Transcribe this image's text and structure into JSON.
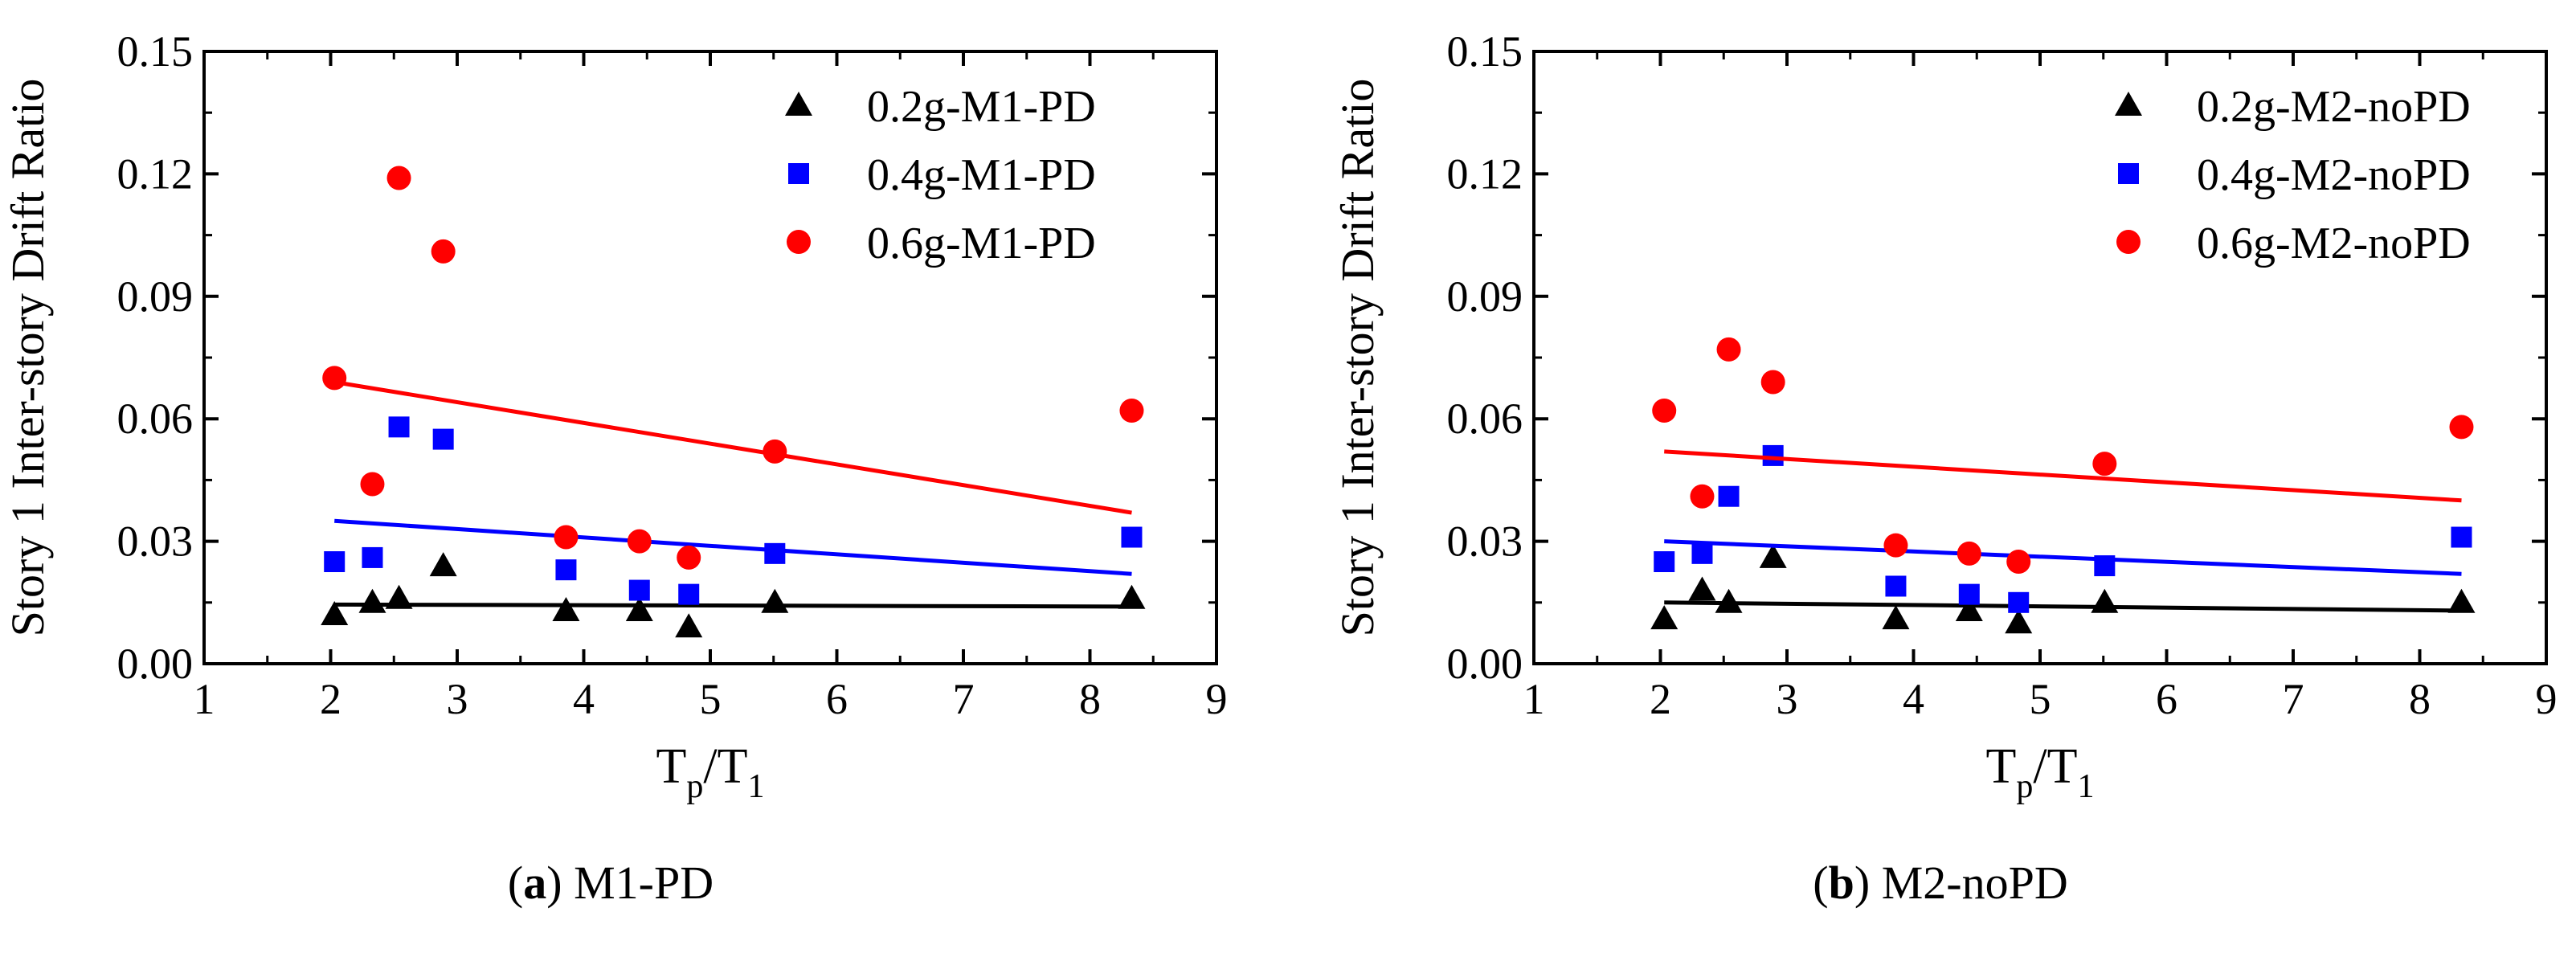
{
  "chart_data": [
    {
      "type": "scatter",
      "panel": "a",
      "caption_letter": "a",
      "caption_text": "M1-PD",
      "xlabel_main": "T",
      "xlabel_sub1": "p",
      "xlabel_sep": "/T",
      "xlabel_sub2": "1",
      "ylabel": "Story 1 Inter-story Drift Ratio",
      "xlim": [
        1,
        9
      ],
      "ylim": [
        0,
        0.15
      ],
      "xticks": [
        1,
        2,
        3,
        4,
        5,
        6,
        7,
        8,
        9
      ],
      "yticks": [
        0,
        0.03,
        0.06,
        0.09,
        0.12,
        0.15
      ],
      "ytick_labels": [
        "0.00",
        "0.03",
        "0.06",
        "0.09",
        "0.12",
        "0.15"
      ],
      "legend_position": "top-right",
      "series": [
        {
          "name": "0.2g-M1-PD",
          "marker": "triangle",
          "color": "#000000",
          "x": [
            2.03,
            2.33,
            2.54,
            2.89,
            3.86,
            4.44,
            4.83,
            5.51,
            8.33
          ],
          "y": [
            0.012,
            0.015,
            0.016,
            0.024,
            0.013,
            0.013,
            0.009,
            0.015,
            0.016
          ],
          "trend": [
            [
              2.03,
              0.0145
            ],
            [
              8.33,
              0.014
            ]
          ]
        },
        {
          "name": "0.4g-M1-PD",
          "marker": "square",
          "color": "#0000ff",
          "x": [
            2.03,
            2.33,
            2.54,
            2.89,
            3.86,
            4.44,
            4.83,
            5.51,
            8.33
          ],
          "y": [
            0.025,
            0.026,
            0.058,
            0.055,
            0.023,
            0.018,
            0.017,
            0.027,
            0.031
          ],
          "trend": [
            [
              2.03,
              0.035
            ],
            [
              8.33,
              0.022
            ]
          ]
        },
        {
          "name": "0.6g-M1-PD",
          "marker": "circle",
          "color": "#ff0000",
          "x": [
            2.03,
            2.33,
            2.54,
            2.89,
            3.86,
            4.44,
            4.83,
            5.51,
            8.33
          ],
          "y": [
            0.07,
            0.044,
            0.119,
            0.101,
            0.031,
            0.03,
            0.026,
            0.052,
            0.062
          ],
          "trend": [
            [
              2.03,
              0.069
            ],
            [
              8.33,
              0.037
            ]
          ]
        }
      ]
    },
    {
      "type": "scatter",
      "panel": "b",
      "caption_letter": "b",
      "caption_text": "M2-noPD",
      "xlabel_main": "T",
      "xlabel_sub1": "p",
      "xlabel_sep": "/T",
      "xlabel_sub2": "1",
      "ylabel": "Story 1 Inter-story Drift Ratio",
      "xlim": [
        1,
        9
      ],
      "ylim": [
        0,
        0.15
      ],
      "xticks": [
        1,
        2,
        3,
        4,
        5,
        6,
        7,
        8,
        9
      ],
      "yticks": [
        0,
        0.03,
        0.06,
        0.09,
        0.12,
        0.15
      ],
      "ytick_labels": [
        "0.00",
        "0.03",
        "0.06",
        "0.09",
        "0.12",
        "0.15"
      ],
      "legend_position": "top-right",
      "series": [
        {
          "name": "0.2g-M2-noPD",
          "marker": "triangle",
          "color": "#000000",
          "x": [
            2.03,
            2.33,
            2.54,
            2.89,
            3.86,
            4.44,
            4.83,
            5.51,
            8.33
          ],
          "y": [
            0.011,
            0.018,
            0.015,
            0.026,
            0.011,
            0.013,
            0.01,
            0.015,
            0.015
          ],
          "trend": [
            [
              2.03,
              0.015
            ],
            [
              8.33,
              0.013
            ]
          ]
        },
        {
          "name": "0.4g-M2-noPD",
          "marker": "square",
          "color": "#0000ff",
          "x": [
            2.03,
            2.33,
            2.54,
            2.89,
            3.86,
            4.44,
            4.83,
            5.51,
            8.33
          ],
          "y": [
            0.025,
            0.027,
            0.041,
            0.051,
            0.019,
            0.017,
            0.015,
            0.024,
            0.031
          ],
          "trend": [
            [
              2.03,
              0.03
            ],
            [
              8.33,
              0.022
            ]
          ]
        },
        {
          "name": "0.6g-M2-noPD",
          "marker": "circle",
          "color": "#ff0000",
          "x": [
            2.03,
            2.33,
            2.54,
            2.89,
            3.86,
            4.44,
            4.83,
            5.51,
            8.33
          ],
          "y": [
            0.062,
            0.041,
            0.077,
            0.069,
            0.029,
            0.027,
            0.025,
            0.049,
            0.058
          ],
          "trend": [
            [
              2.03,
              0.052
            ],
            [
              8.33,
              0.04
            ]
          ]
        }
      ]
    }
  ]
}
